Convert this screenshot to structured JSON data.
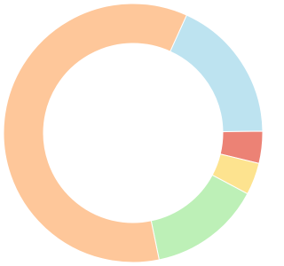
{
  "chart_data": {
    "type": "doughnut",
    "values": [
      18,
      4,
      4,
      14,
      60
    ],
    "colors": [
      "#bde3f0",
      "#ec8275",
      "#fde38f",
      "#bdf0b7",
      "#fec79a"
    ]
  }
}
